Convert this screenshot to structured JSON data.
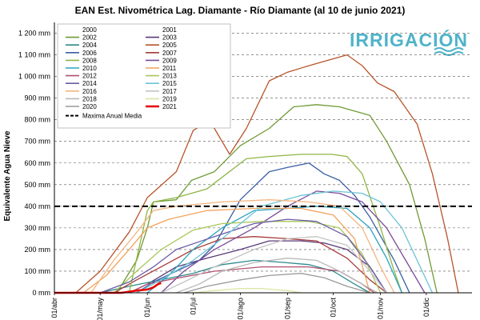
{
  "chart_data": {
    "type": "line",
    "title": "EAN Est. Nivométrica Lag.  Diamante - Río Diamante (al 10 de junio 2021)",
    "ylabel": "Equivalente  Agua Nieve",
    "xlabel": "",
    "ylim": [
      0,
      1250
    ],
    "y_ticks": [
      0,
      100,
      200,
      300,
      400,
      500,
      600,
      700,
      800,
      900,
      1000,
      1100,
      1200
    ],
    "y_tick_labels": [
      "0 mm",
      "100 mm",
      "200 mm",
      "300 mm",
      "400 mm",
      "500 mm",
      "600 mm",
      "700 mm",
      "800 mm",
      "900 mm",
      "1 000 mm",
      "1 100 mm",
      "1 200 mm"
    ],
    "x_domain": [
      "04-01",
      "12-31"
    ],
    "x_ticks": [
      "04-01",
      "05-01",
      "06-01",
      "07-01",
      "08-01",
      "09-01",
      "10-01",
      "11-01",
      "12-01"
    ],
    "x_tick_labels": [
      "01/abr",
      "01/may",
      "01/jun",
      "01/jul",
      "01/ago",
      "01/sep",
      "01/oct",
      "01/nov",
      "01/dic"
    ],
    "grid": {
      "horizontal": true,
      "style": "dashed",
      "vertical": false
    },
    "legend_position": "top-left",
    "reference_line": {
      "name": "Maxima Anual Media",
      "value": 400,
      "color": "#000000",
      "style": "dashed"
    },
    "brand": {
      "text": "IRRIGACIÓN",
      "color": "#4fb3c9"
    },
    "series": [
      {
        "name": "2000",
        "color": "#f2f2f2",
        "points": []
      },
      {
        "name": "2001",
        "color": "#f2f2f2",
        "points": []
      },
      {
        "name": "2002",
        "color": "#6e9b35",
        "points": [
          [
            "05-12",
            0
          ],
          [
            "05-25",
            150
          ],
          [
            "06-01",
            300
          ],
          [
            "06-05",
            420
          ],
          [
            "06-20",
            430
          ],
          [
            "06-30",
            520
          ],
          [
            "07-15",
            560
          ],
          [
            "08-01",
            680
          ],
          [
            "08-20",
            760
          ],
          [
            "09-05",
            860
          ],
          [
            "09-20",
            870
          ],
          [
            "10-05",
            860
          ],
          [
            "10-15",
            840
          ],
          [
            "10-25",
            820
          ],
          [
            "11-05",
            700
          ],
          [
            "11-20",
            500
          ],
          [
            "11-30",
            250
          ],
          [
            "12-08",
            0
          ]
        ]
      },
      {
        "name": "2003",
        "color": "#5b3a78",
        "points": [
          [
            "05-20",
            0
          ],
          [
            "06-01",
            40
          ],
          [
            "06-20",
            120
          ],
          [
            "07-10",
            160
          ],
          [
            "08-01",
            200
          ],
          [
            "08-20",
            240
          ],
          [
            "09-10",
            240
          ],
          [
            "09-25",
            230
          ],
          [
            "10-10",
            200
          ],
          [
            "10-25",
            120
          ],
          [
            "11-05",
            0
          ]
        ]
      },
      {
        "name": "2004",
        "color": "#2c8a8c",
        "points": [
          [
            "05-01",
            0
          ],
          [
            "05-20",
            30
          ],
          [
            "06-10",
            60
          ],
          [
            "07-01",
            90
          ],
          [
            "07-20",
            130
          ],
          [
            "08-10",
            150
          ],
          [
            "08-30",
            140
          ],
          [
            "09-15",
            130
          ],
          [
            "10-01",
            100
          ],
          [
            "10-15",
            40
          ],
          [
            "10-25",
            0
          ]
        ]
      },
      {
        "name": "2005",
        "color": "#b8542b",
        "points": [
          [
            "04-15",
            0
          ],
          [
            "05-01",
            100
          ],
          [
            "05-20",
            280
          ],
          [
            "06-01",
            440
          ],
          [
            "06-20",
            560
          ],
          [
            "07-01",
            750
          ],
          [
            "07-10",
            790
          ],
          [
            "07-15",
            760
          ],
          [
            "07-25",
            640
          ],
          [
            "08-05",
            760
          ],
          [
            "08-20",
            980
          ],
          [
            "09-01",
            1020
          ],
          [
            "09-15",
            1050
          ],
          [
            "09-30",
            1080
          ],
          [
            "10-10",
            1100
          ],
          [
            "10-20",
            1050
          ],
          [
            "10-30",
            970
          ],
          [
            "11-10",
            930
          ],
          [
            "11-25",
            780
          ],
          [
            "12-05",
            550
          ],
          [
            "12-15",
            250
          ],
          [
            "12-22",
            0
          ]
        ]
      },
      {
        "name": "2006",
        "color": "#3a5fa6",
        "points": [
          [
            "05-25",
            0
          ],
          [
            "06-05",
            50
          ],
          [
            "06-20",
            100
          ],
          [
            "07-05",
            150
          ],
          [
            "07-15",
            220
          ],
          [
            "08-01",
            430
          ],
          [
            "08-20",
            560
          ],
          [
            "09-01",
            580
          ],
          [
            "09-15",
            600
          ],
          [
            "09-25",
            550
          ],
          [
            "10-05",
            520
          ],
          [
            "10-15",
            450
          ],
          [
            "10-25",
            350
          ],
          [
            "11-10",
            150
          ],
          [
            "11-20",
            0
          ]
        ]
      },
      {
        "name": "2007",
        "color": "#a63b3b",
        "points": [
          [
            "05-10",
            0
          ],
          [
            "05-25",
            60
          ],
          [
            "06-10",
            120
          ],
          [
            "07-01",
            200
          ],
          [
            "07-20",
            250
          ],
          [
            "08-10",
            260
          ],
          [
            "09-01",
            250
          ],
          [
            "09-20",
            240
          ],
          [
            "10-10",
            160
          ],
          [
            "10-25",
            60
          ],
          [
            "11-05",
            0
          ]
        ]
      },
      {
        "name": "2008",
        "color": "#8fb545",
        "points": [
          [
            "05-20",
            0
          ],
          [
            "06-01",
            380
          ],
          [
            "06-05",
            420
          ],
          [
            "06-20",
            440
          ],
          [
            "07-10",
            480
          ],
          [
            "08-05",
            620
          ],
          [
            "08-20",
            630
          ],
          [
            "09-10",
            640
          ],
          [
            "09-30",
            640
          ],
          [
            "10-10",
            630
          ],
          [
            "10-20",
            550
          ],
          [
            "11-01",
            300
          ],
          [
            "11-10",
            100
          ],
          [
            "11-15",
            0
          ]
        ]
      },
      {
        "name": "2009",
        "color": "#7a4a9b",
        "points": [
          [
            "06-10",
            0
          ],
          [
            "06-25",
            100
          ],
          [
            "07-15",
            200
          ],
          [
            "08-10",
            300
          ],
          [
            "09-01",
            400
          ],
          [
            "09-20",
            470
          ],
          [
            "10-05",
            460
          ],
          [
            "10-20",
            420
          ],
          [
            "11-05",
            300
          ],
          [
            "11-20",
            120
          ],
          [
            "11-30",
            0
          ]
        ]
      },
      {
        "name": "2010",
        "color": "#2aa3c0",
        "points": [
          [
            "06-01",
            0
          ],
          [
            "06-15",
            80
          ],
          [
            "07-01",
            200
          ],
          [
            "07-20",
            300
          ],
          [
            "08-10",
            380
          ],
          [
            "09-01",
            390
          ],
          [
            "09-20",
            400
          ],
          [
            "10-10",
            390
          ],
          [
            "10-25",
            300
          ],
          [
            "11-05",
            160
          ],
          [
            "11-15",
            0
          ]
        ]
      },
      {
        "name": "2011",
        "color": "#f2a25a",
        "points": [
          [
            "04-20",
            0
          ],
          [
            "05-05",
            80
          ],
          [
            "05-20",
            200
          ],
          [
            "06-01",
            300
          ],
          [
            "06-15",
            340
          ],
          [
            "07-10",
            380
          ],
          [
            "08-10",
            390
          ],
          [
            "09-10",
            390
          ],
          [
            "10-01",
            360
          ],
          [
            "10-15",
            250
          ],
          [
            "10-25",
            0
          ]
        ]
      },
      {
        "name": "2012",
        "color": "#b0506e",
        "points": [
          [
            "05-20",
            0
          ],
          [
            "06-01",
            40
          ],
          [
            "06-15",
            60
          ],
          [
            "07-15",
            100
          ],
          [
            "08-15",
            120
          ],
          [
            "09-15",
            120
          ],
          [
            "10-05",
            100
          ],
          [
            "10-20",
            40
          ],
          [
            "10-28",
            0
          ]
        ]
      },
      {
        "name": "2013",
        "color": "#a8c85a",
        "points": [
          [
            "05-10",
            0
          ],
          [
            "05-25",
            100
          ],
          [
            "06-10",
            200
          ],
          [
            "07-01",
            290
          ],
          [
            "07-20",
            320
          ],
          [
            "08-15",
            330
          ],
          [
            "09-15",
            330
          ],
          [
            "10-05",
            300
          ],
          [
            "10-20",
            180
          ],
          [
            "11-01",
            0
          ]
        ]
      },
      {
        "name": "2014",
        "color": "#6b5aa6",
        "points": [
          [
            "05-01",
            0
          ],
          [
            "05-20",
            50
          ],
          [
            "06-05",
            120
          ],
          [
            "06-20",
            200
          ],
          [
            "07-15",
            260
          ],
          [
            "08-10",
            320
          ],
          [
            "09-01",
            340
          ],
          [
            "09-20",
            330
          ],
          [
            "10-10",
            260
          ],
          [
            "10-25",
            120
          ],
          [
            "11-05",
            0
          ]
        ]
      },
      {
        "name": "2015",
        "color": "#6cc3d6",
        "points": [
          [
            "05-25",
            0
          ],
          [
            "06-10",
            60
          ],
          [
            "07-01",
            150
          ],
          [
            "07-20",
            250
          ],
          [
            "08-15",
            400
          ],
          [
            "09-10",
            450
          ],
          [
            "10-01",
            470
          ],
          [
            "10-20",
            460
          ],
          [
            "11-01",
            420
          ],
          [
            "11-15",
            300
          ],
          [
            "11-25",
            150
          ],
          [
            "12-05",
            0
          ]
        ]
      },
      {
        "name": "2016",
        "color": "#f4b580",
        "points": [
          [
            "04-25",
            0
          ],
          [
            "05-10",
            150
          ],
          [
            "05-25",
            280
          ],
          [
            "06-05",
            380
          ],
          [
            "06-20",
            400
          ],
          [
            "07-20",
            420
          ],
          [
            "08-20",
            430
          ],
          [
            "09-15",
            420
          ],
          [
            "10-05",
            400
          ],
          [
            "10-20",
            300
          ],
          [
            "11-01",
            120
          ],
          [
            "11-10",
            0
          ]
        ]
      },
      {
        "name": "2017",
        "color": "#c4c4c4",
        "points": [
          [
            "06-10",
            0
          ],
          [
            "06-25",
            50
          ],
          [
            "07-15",
            120
          ],
          [
            "08-10",
            200
          ],
          [
            "09-01",
            250
          ],
          [
            "09-20",
            260
          ],
          [
            "10-10",
            220
          ],
          [
            "10-25",
            100
          ],
          [
            "11-05",
            0
          ]
        ]
      },
      {
        "name": "2018",
        "color": "#b8b8b8",
        "points": [
          [
            "06-20",
            0
          ],
          [
            "07-05",
            40
          ],
          [
            "07-20",
            100
          ],
          [
            "08-10",
            140
          ],
          [
            "09-01",
            160
          ],
          [
            "09-20",
            150
          ],
          [
            "10-05",
            100
          ],
          [
            "10-20",
            40
          ],
          [
            "10-30",
            0
          ]
        ]
      },
      {
        "name": "2019",
        "color": "#d8e6a4",
        "points": [
          [
            "07-01",
            0
          ],
          [
            "07-15",
            10
          ],
          [
            "08-01",
            20
          ],
          [
            "08-15",
            20
          ],
          [
            "09-01",
            10
          ],
          [
            "09-10",
            0
          ]
        ]
      },
      {
        "name": "2020",
        "color": "#9a9a9a",
        "points": [
          [
            "06-25",
            0
          ],
          [
            "07-10",
            30
          ],
          [
            "08-01",
            60
          ],
          [
            "08-20",
            80
          ],
          [
            "09-10",
            90
          ],
          [
            "09-25",
            70
          ],
          [
            "10-10",
            30
          ],
          [
            "10-25",
            0
          ]
        ]
      },
      {
        "name": "2021",
        "color": "#e60000",
        "width": 2.5,
        "points": [
          [
            "04-01",
            0
          ],
          [
            "05-15",
            0
          ],
          [
            "05-25",
            10
          ],
          [
            "06-01",
            15
          ],
          [
            "06-05",
            25
          ],
          [
            "06-08",
            40
          ],
          [
            "06-10",
            45
          ]
        ]
      }
    ]
  }
}
